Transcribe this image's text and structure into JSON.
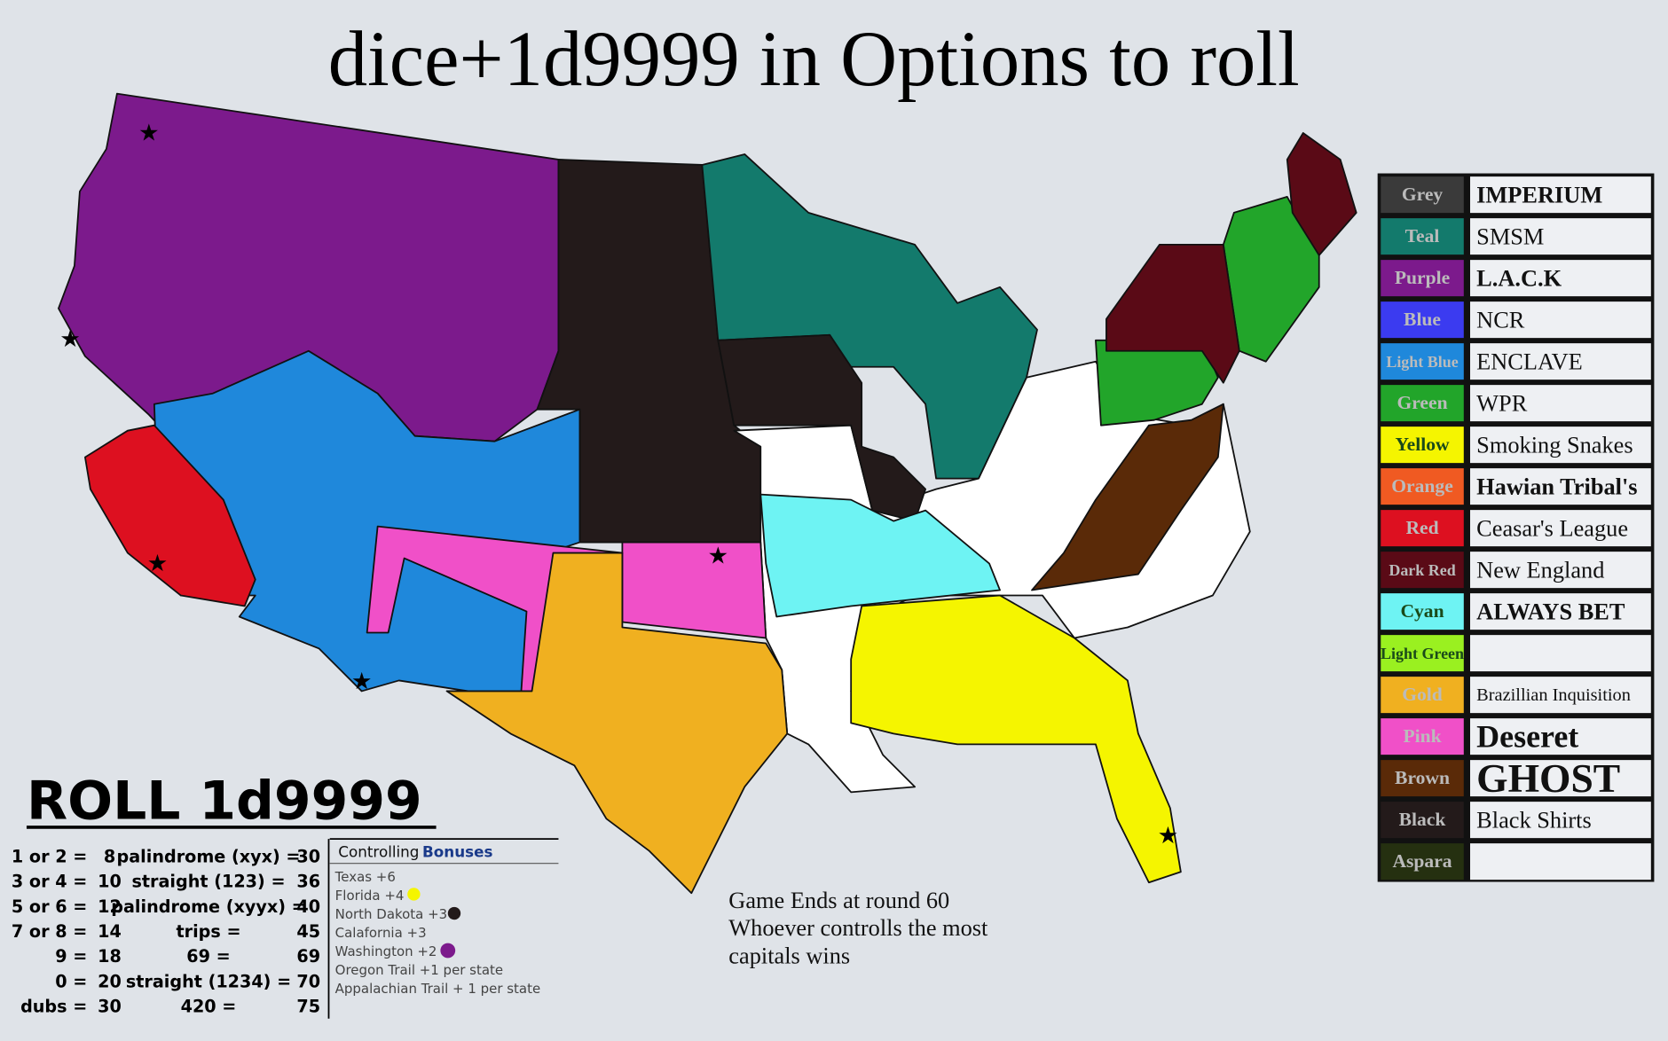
{
  "title": "dice+1d9999 in Options to roll",
  "legend": [
    {
      "color": "Grey",
      "swatch": "#3a3a3a",
      "faction": "IMPERIUM"
    },
    {
      "color": "Teal",
      "swatch": "#137a6c",
      "faction": "SMSM"
    },
    {
      "color": "Purple",
      "swatch": "#7c1a8c",
      "faction": "L.A.C.K"
    },
    {
      "color": "Blue",
      "swatch": "#3b3bf0",
      "faction": "NCR"
    },
    {
      "color": "Light Blue",
      "swatch": "#1f88db",
      "faction": "ENCLAVE"
    },
    {
      "color": "Green",
      "swatch": "#22a52a",
      "faction": "WPR"
    },
    {
      "color": "Yellow",
      "swatch": "#f5f500",
      "faction": "Smoking Snakes"
    },
    {
      "color": "Orange",
      "swatch": "#f05a22",
      "faction": "Hawian Tribal's"
    },
    {
      "color": "Red",
      "swatch": "#dd1020",
      "faction": "Ceasar's League"
    },
    {
      "color": "Dark Red",
      "swatch": "#5a0a16",
      "faction": "New England"
    },
    {
      "color": "Cyan",
      "swatch": "#6ef3f3",
      "faction": "ALWAYS BET"
    },
    {
      "color": "Light Green",
      "swatch": "#9af020"
    },
    {
      "color": "Gold",
      "swatch": "#f0b020",
      "faction": "Brazillian Inquisition"
    },
    {
      "color": "Pink",
      "swatch": "#f050c8",
      "faction": "Deseret"
    },
    {
      "color": "Brown",
      "swatch": "#5a2a08",
      "faction": "GHOST"
    },
    {
      "color": "Black",
      "swatch": "#231a1a",
      "faction": "Black Shirts"
    },
    {
      "color": "Aspara",
      "swatch": "#253010"
    }
  ],
  "roll": {
    "heading": "ROLL 1d9999",
    "rows": [
      [
        "1 or 2 =",
        "8",
        "palindrome (xyx) =",
        "30"
      ],
      [
        "3 or 4 =",
        "10",
        "straight (123) =",
        "36"
      ],
      [
        "5 or 6 =",
        "12",
        "palindrome (xyyx) =",
        "40"
      ],
      [
        "7 or 8 =",
        "14",
        "trips =",
        "45"
      ],
      [
        "9 =",
        "18",
        "69 =",
        "69"
      ],
      [
        "0 =",
        "20",
        "straight (1234) =",
        "70"
      ],
      [
        "dubs =",
        "30",
        "420 =",
        "75"
      ]
    ]
  },
  "bonuses": {
    "heading": [
      "Controlling",
      "Bonuses"
    ],
    "items": [
      "Texas +6",
      "Florida +4",
      "North Dakota +3",
      "Calafornia +3",
      "Washington +2",
      "Oregon Trail +1 per state",
      "Appalachian Trail + 1 per state"
    ]
  },
  "note": [
    "Game Ends at round 60",
    "Whoever controlls the most",
    "capitals wins"
  ]
}
